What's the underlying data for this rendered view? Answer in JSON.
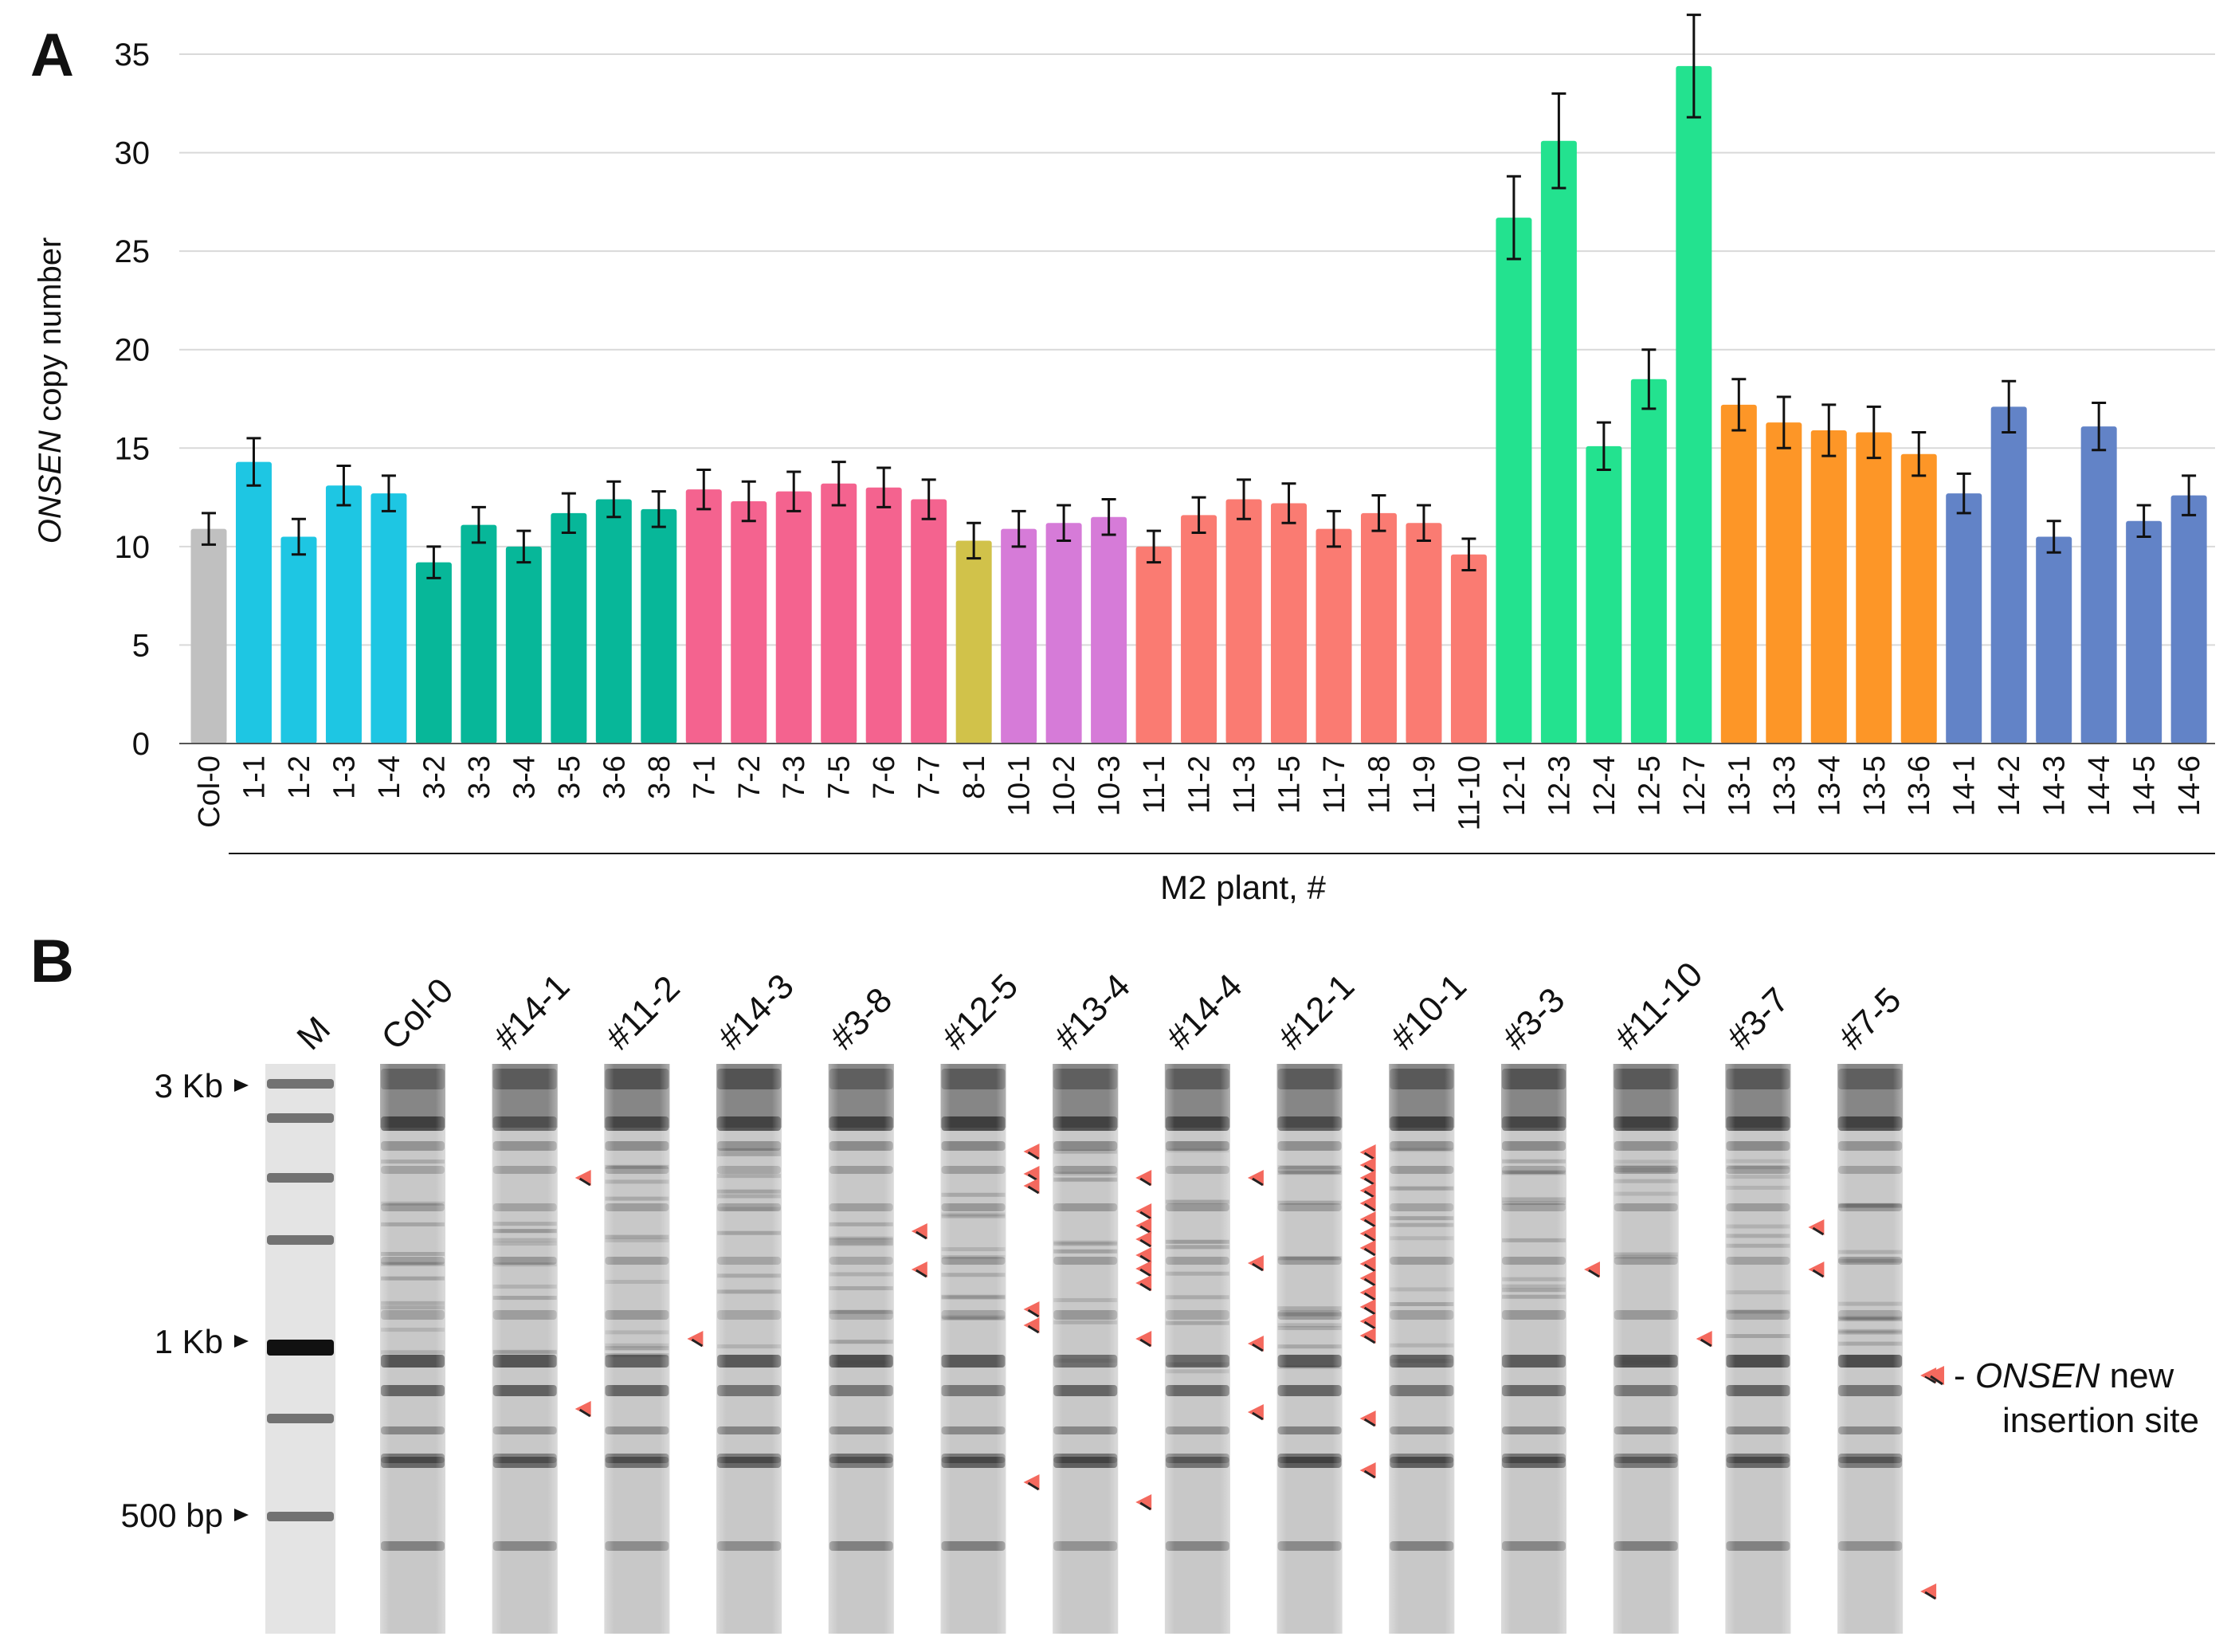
{
  "panel_a_label": "A",
  "panel_b_label": "B",
  "chart_data": {
    "type": "bar",
    "ylabel_italic": "ONSEN",
    "ylabel_rest": " copy number",
    "xlabel": "M2 plant, #",
    "ylim": [
      0,
      35
    ],
    "yticks": [
      0,
      5,
      10,
      15,
      20,
      25,
      30,
      35
    ],
    "grid": true,
    "categories": [
      "Col-0",
      "1-1",
      "1-2",
      "1-3",
      "1-4",
      "3-2",
      "3-3",
      "3-4",
      "3-5",
      "3-6",
      "3-8",
      "7-1",
      "7-2",
      "7-3",
      "7-5",
      "7-6",
      "7-7",
      "8-1",
      "10-1",
      "10-2",
      "10-3",
      "11-1",
      "11-2",
      "11-3",
      "11-5",
      "11-7",
      "11-8",
      "11-9",
      "11-10",
      "12-1",
      "12-3",
      "12-4",
      "12-5",
      "12-7",
      "13-1",
      "13-3",
      "13-4",
      "13-5",
      "13-6",
      "14-1",
      "14-2",
      "14-3",
      "14-4",
      "14-5",
      "14-6"
    ],
    "values": [
      10.9,
      14.3,
      10.5,
      13.1,
      12.7,
      9.2,
      11.1,
      10.0,
      11.7,
      12.4,
      11.9,
      12.9,
      12.3,
      12.8,
      13.2,
      13.0,
      12.4,
      10.3,
      10.9,
      11.2,
      11.5,
      10.0,
      11.6,
      12.4,
      12.2,
      10.9,
      11.7,
      11.2,
      9.6,
      26.7,
      30.6,
      15.1,
      18.5,
      34.4,
      17.2,
      16.3,
      15.9,
      15.8,
      14.7,
      12.7,
      17.1,
      10.5,
      16.1,
      11.3,
      12.6
    ],
    "errors": [
      0.8,
      1.2,
      0.9,
      1.0,
      0.9,
      0.8,
      0.9,
      0.8,
      1.0,
      0.9,
      0.9,
      1.0,
      1.0,
      1.0,
      1.1,
      1.0,
      1.0,
      0.9,
      0.9,
      0.9,
      0.9,
      0.8,
      0.9,
      1.0,
      1.0,
      0.9,
      0.9,
      0.9,
      0.8,
      2.1,
      2.4,
      1.2,
      1.5,
      2.6,
      1.3,
      1.3,
      1.3,
      1.3,
      1.1,
      1.0,
      1.3,
      0.8,
      1.2,
      0.8,
      1.0
    ],
    "group_colors": [
      "#c0c0c0",
      "#1ec6e3",
      "#1ec6e3",
      "#1ec6e3",
      "#1ec6e3",
      "#07b799",
      "#07b799",
      "#07b799",
      "#07b799",
      "#07b799",
      "#07b799",
      "#f4638f",
      "#f4638f",
      "#f4638f",
      "#f4638f",
      "#f4638f",
      "#f4638f",
      "#d1c24a",
      "#d67bd8",
      "#d67bd8",
      "#d67bd8",
      "#fa7b72",
      "#fa7b72",
      "#fa7b72",
      "#fa7b72",
      "#fa7b72",
      "#fa7b72",
      "#fa7b72",
      "#fa7b72",
      "#23e28f",
      "#23e28f",
      "#23e28f",
      "#23e28f",
      "#23e28f",
      "#fd9627",
      "#fd9627",
      "#fd9627",
      "#fd9627",
      "#fd9627",
      "#6283c7",
      "#6283c7",
      "#6283c7",
      "#6283c7",
      "#6283c7",
      "#6283c7"
    ]
  },
  "gel": {
    "marker_lane": "M",
    "lanes": [
      "Col-0",
      "#14-1",
      "#11-2",
      "#14-3",
      "#3-8",
      "#12-5",
      "#13-4",
      "#14-4",
      "#12-1",
      "#10-1",
      "#3-3",
      "#11-10",
      "#3-7",
      "#7-5"
    ],
    "size_markers": [
      "3 Kb",
      "1 Kb",
      "500 bp"
    ],
    "arrow_color": "#f4695e",
    "legend_italic": "ONSEN",
    "legend_line1_prefix": "- ",
    "legend_line1_suffix": " new",
    "legend_line2": "insertion site"
  }
}
